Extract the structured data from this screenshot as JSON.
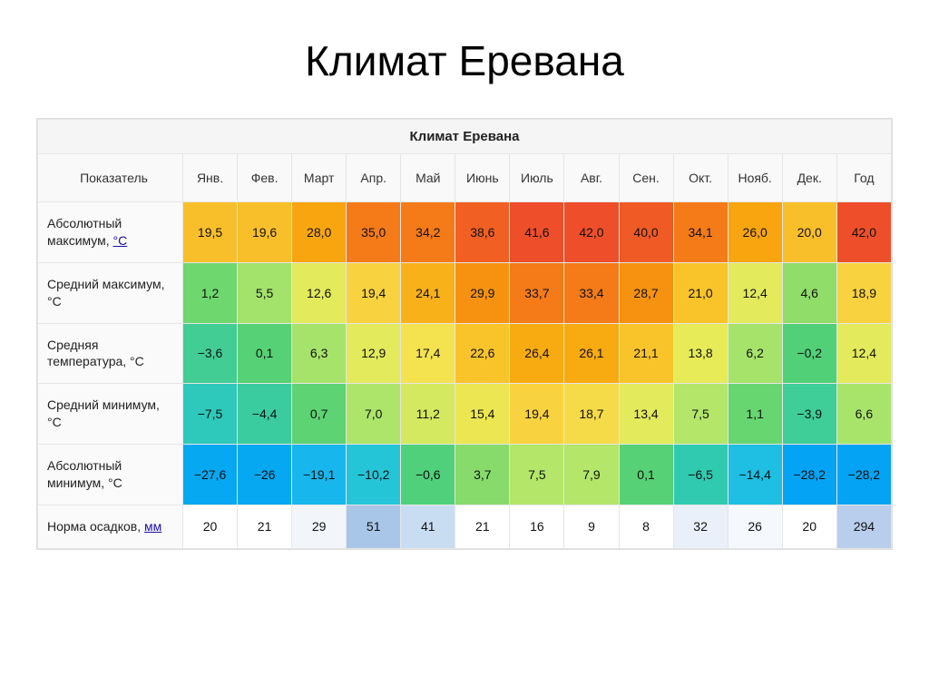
{
  "slide": {
    "title": "Климат Еревана",
    "title_fontsize": 46,
    "background_color": "#ffffff"
  },
  "table": {
    "type": "table",
    "caption": "Климат Еревана",
    "header_bg": "#f5f5f5",
    "subheader_bg": "#f9f9f9",
    "border_color": "#e5e5e5",
    "label_bg": "#fafafa",
    "cell_fontsize": 14,
    "columns_header_label": "Показатель",
    "months": [
      "Янв.",
      "Фев.",
      "Март",
      "Апр.",
      "Май",
      "Июнь",
      "Июль",
      "Авг.",
      "Сен.",
      "Окт.",
      "Нояб.",
      "Дек.",
      "Год"
    ],
    "rows": [
      {
        "label_pre": "Абсолютный максимум, ",
        "label_link": "°C",
        "data": [
          {
            "v": "19,5",
            "c": "#f9bf2a"
          },
          {
            "v": "19,6",
            "c": "#f9bf2a"
          },
          {
            "v": "28,0",
            "c": "#f8a510"
          },
          {
            "v": "35,0",
            "c": "#f47b17"
          },
          {
            "v": "34,2",
            "c": "#f47b17"
          },
          {
            "v": "38,6",
            "c": "#f15f22"
          },
          {
            "v": "41,6",
            "c": "#ee4f2a"
          },
          {
            "v": "42,0",
            "c": "#ee4f2a"
          },
          {
            "v": "40,0",
            "c": "#f05a25"
          },
          {
            "v": "34,1",
            "c": "#f47b17"
          },
          {
            "v": "26,0",
            "c": "#f8a510"
          },
          {
            "v": "20,0",
            "c": "#f9bf2a"
          },
          {
            "v": "42,0",
            "c": "#ee4f2a"
          }
        ]
      },
      {
        "label_pre": "Средний максимум, °C",
        "label_link": "",
        "data": [
          {
            "v": "1,2",
            "c": "#6ed76e"
          },
          {
            "v": "5,5",
            "c": "#a3e26b"
          },
          {
            "v": "12,6",
            "c": "#e3ea5c"
          },
          {
            "v": "19,4",
            "c": "#f9d33f"
          },
          {
            "v": "24,1",
            "c": "#f8b118"
          },
          {
            "v": "29,9",
            "c": "#f6920f"
          },
          {
            "v": "33,7",
            "c": "#f47b17"
          },
          {
            "v": "33,4",
            "c": "#f47b17"
          },
          {
            "v": "28,7",
            "c": "#f6920f"
          },
          {
            "v": "21,0",
            "c": "#f9c42a"
          },
          {
            "v": "12,4",
            "c": "#e3ea5c"
          },
          {
            "v": "4,6",
            "c": "#90dd6a"
          },
          {
            "v": "18,9",
            "c": "#f9d33f"
          }
        ]
      },
      {
        "label_pre": "Средняя температура, °C",
        "label_link": "",
        "data": [
          {
            "v": "−3,6",
            "c": "#42cd95"
          },
          {
            "v": "0,1",
            "c": "#57d175"
          },
          {
            "v": "6,3",
            "c": "#a6e36b"
          },
          {
            "v": "12,9",
            "c": "#e3ea5c"
          },
          {
            "v": "17,4",
            "c": "#f4e24f"
          },
          {
            "v": "22,6",
            "c": "#f9c42a"
          },
          {
            "v": "26,4",
            "c": "#f8aa11"
          },
          {
            "v": "26,1",
            "c": "#f8aa11"
          },
          {
            "v": "21,1",
            "c": "#f9c42a"
          },
          {
            "v": "13,8",
            "c": "#e7eb57"
          },
          {
            "v": "6,2",
            "c": "#a6e36b"
          },
          {
            "v": "−0,2",
            "c": "#52d078"
          },
          {
            "v": "12,4",
            "c": "#e3ea5c"
          }
        ]
      },
      {
        "label_pre": "Средний минимум, °C",
        "label_link": "",
        "data": [
          {
            "v": "−7,5",
            "c": "#2ec9bb"
          },
          {
            "v": "−4,4",
            "c": "#3acc9f"
          },
          {
            "v": "0,7",
            "c": "#5ed373"
          },
          {
            "v": "7,0",
            "c": "#ace56a"
          },
          {
            "v": "11,2",
            "c": "#d4e95f"
          },
          {
            "v": "15,4",
            "c": "#ece652"
          },
          {
            "v": "19,4",
            "c": "#f9d33f"
          },
          {
            "v": "18,7",
            "c": "#f6db48"
          },
          {
            "v": "13,4",
            "c": "#e3ea5c"
          },
          {
            "v": "7,5",
            "c": "#b3e669"
          },
          {
            "v": "1,1",
            "c": "#67d670"
          },
          {
            "v": "−3,9",
            "c": "#3fcd98"
          },
          {
            "v": "6,6",
            "c": "#a9e46a"
          }
        ]
      },
      {
        "label_pre": "Абсолютный минимум, °C",
        "label_link": "",
        "data": [
          {
            "v": "−27,6",
            "c": "#06a8f2"
          },
          {
            "v": "−26",
            "c": "#06a8f2"
          },
          {
            "v": "−19,1",
            "c": "#17b6ec"
          },
          {
            "v": "−10,2",
            "c": "#25c5d8"
          },
          {
            "v": "−0,6",
            "c": "#50d07a"
          },
          {
            "v": "3,7",
            "c": "#87db6b"
          },
          {
            "v": "7,5",
            "c": "#b3e669"
          },
          {
            "v": "7,9",
            "c": "#b3e669"
          },
          {
            "v": "0,1",
            "c": "#57d175"
          },
          {
            "v": "−6,5",
            "c": "#30cab0"
          },
          {
            "v": "−14,4",
            "c": "#1ebfe3"
          },
          {
            "v": "−28,2",
            "c": "#04a3f3"
          },
          {
            "v": "−28,2",
            "c": "#04a3f3"
          }
        ]
      },
      {
        "label_pre": "Норма осадков, ",
        "label_link": "мм",
        "data": [
          {
            "v": "20",
            "c": "#ffffff"
          },
          {
            "v": "21",
            "c": "#ffffff"
          },
          {
            "v": "29",
            "c": "#f2f6fb"
          },
          {
            "v": "51",
            "c": "#a8c6e8"
          },
          {
            "v": "41",
            "c": "#c9ddf2"
          },
          {
            "v": "21",
            "c": "#ffffff"
          },
          {
            "v": "16",
            "c": "#ffffff"
          },
          {
            "v": "9",
            "c": "#ffffff"
          },
          {
            "v": "8",
            "c": "#ffffff"
          },
          {
            "v": "32",
            "c": "#e9f0f9"
          },
          {
            "v": "26",
            "c": "#f5f8fc"
          },
          {
            "v": "20",
            "c": "#ffffff"
          },
          {
            "v": "294",
            "c": "#b9cdec"
          }
        ]
      }
    ]
  }
}
